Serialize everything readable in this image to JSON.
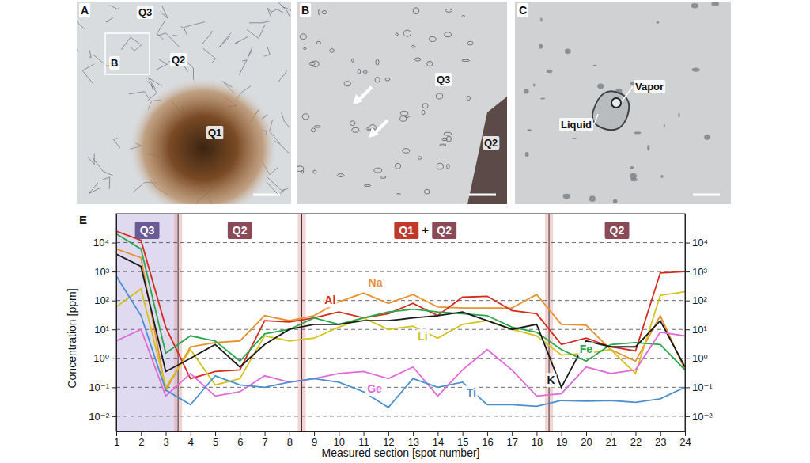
{
  "image_panels": [
    {
      "letter": "A",
      "labels": [
        "Q3",
        "B",
        "Q2",
        "Q1"
      ]
    },
    {
      "letter": "B",
      "labels": [
        "Q3",
        "Q2"
      ]
    },
    {
      "letter": "C",
      "labels": [
        "Vapor",
        "Liquid"
      ]
    }
  ],
  "chart_data": {
    "type": "line",
    "panel_letter": "E",
    "x_label": "Measured section [spot number]",
    "y_label": "Concentration [ppm]",
    "log": "y",
    "grid": true,
    "x": [
      1,
      2,
      3,
      4,
      5,
      6,
      7,
      8,
      9,
      10,
      11,
      12,
      13,
      14,
      15,
      16,
      17,
      18,
      19,
      20,
      21,
      22,
      23,
      24
    ],
    "xlim": [
      1,
      24
    ],
    "xticks": [
      1,
      2,
      3,
      4,
      5,
      6,
      7,
      8,
      9,
      10,
      11,
      12,
      13,
      14,
      15,
      16,
      17,
      18,
      19,
      20,
      21,
      22,
      23,
      24
    ],
    "ylim": [
      0.003,
      100000
    ],
    "yticks": [
      {
        "value": 0.01,
        "label": "10⁻²"
      },
      {
        "value": 0.1,
        "label": "10⁻¹"
      },
      {
        "value": 1,
        "label": "10⁰"
      },
      {
        "value": 10,
        "label": "10¹"
      },
      {
        "value": 100,
        "label": "10²"
      },
      {
        "value": 1000,
        "label": "10³"
      },
      {
        "value": 10000,
        "label": "10⁴"
      }
    ],
    "region_joiner": "+",
    "regions": [
      {
        "start": 1,
        "end": 3.5,
        "labels": [
          "Q3"
        ],
        "label_colors": [
          "#6b5b95"
        ],
        "color": "#dcd6ee"
      },
      {
        "start": 3.5,
        "end": 8.5,
        "labels": [
          "Q2"
        ],
        "label_colors": [
          "#8b4a57"
        ],
        "color": "#ffffff"
      },
      {
        "start": 8.5,
        "end": 18.5,
        "labels": [
          "Q1",
          "Q2"
        ],
        "label_colors": [
          "#c0392b",
          "#8b4a57"
        ],
        "color": "#ffffff"
      },
      {
        "start": 18.5,
        "end": 24,
        "labels": [
          "Q2"
        ],
        "label_colors": [
          "#8b4a57"
        ],
        "color": "#ffffff"
      }
    ],
    "series": [
      {
        "name": "Na",
        "color": "#e8912e",
        "values": [
          6000,
          3000,
          0.08,
          2.5,
          3.5,
          4,
          30,
          20,
          30,
          90,
          180,
          80,
          160,
          60,
          55,
          55,
          55,
          160,
          15,
          14,
          2,
          0.8,
          30,
          0.4
        ]
      },
      {
        "name": "Al",
        "color": "#d52b1e",
        "values": [
          25000,
          12000,
          12,
          0.2,
          0.35,
          0.4,
          20,
          18,
          25,
          40,
          25,
          35,
          80,
          30,
          130,
          140,
          45,
          35,
          3,
          5,
          2.5,
          1.8,
          900,
          1000
        ]
      },
      {
        "name": "Li",
        "color": "#d4c21a",
        "values": [
          60,
          250,
          0.1,
          2,
          0.12,
          0.2,
          6,
          4,
          5,
          12,
          25,
          10,
          13,
          5,
          15,
          20,
          10,
          6,
          1.3,
          1.5,
          2,
          0.3,
          150,
          200
        ]
      },
      {
        "name": "Fe",
        "color": "#27a84a",
        "values": [
          20000,
          6000,
          1.5,
          6,
          4,
          0.8,
          7,
          10,
          25,
          15,
          25,
          40,
          50,
          40,
          35,
          30,
          12,
          8,
          2,
          0.8,
          3,
          3.5,
          3,
          0.4
        ]
      },
      {
        "name": "K",
        "color": "#1a1a1a",
        "values": [
          4000,
          1500,
          0.35,
          1,
          3,
          0.5,
          3,
          10,
          15,
          15,
          20,
          20,
          25,
          30,
          40,
          20,
          10,
          15,
          0.1,
          4,
          2.5,
          2.5,
          20,
          0.5
        ]
      },
      {
        "name": "Ge",
        "color": "#e06ad8",
        "values": [
          4,
          10,
          0.05,
          0.3,
          0.05,
          0.07,
          0.25,
          0.15,
          0.2,
          0.3,
          0.35,
          0.2,
          0.5,
          0.05,
          0.4,
          2,
          0.4,
          0.05,
          0.06,
          0.5,
          0.3,
          0.4,
          8,
          6
        ]
      },
      {
        "name": "Ti",
        "color": "#4a90d0",
        "values": [
          700,
          30,
          0.08,
          0.025,
          0.25,
          0.12,
          0.1,
          0.15,
          0.2,
          0.15,
          0.07,
          0.02,
          0.2,
          0.1,
          0.15,
          0.025,
          0.025,
          0.022,
          0.035,
          0.033,
          0.035,
          0.03,
          0.04,
          0.1
        ]
      }
    ]
  }
}
